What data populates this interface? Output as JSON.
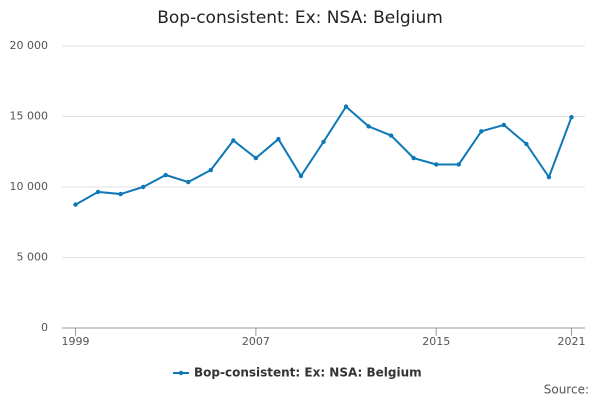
{
  "chart_data": {
    "type": "line",
    "title": "Bop-consistent: Ex: NSA: Belgium",
    "x": [
      1999,
      2000,
      2001,
      2002,
      2003,
      2004,
      2005,
      2006,
      2007,
      2008,
      2009,
      2010,
      2011,
      2012,
      2013,
      2014,
      2015,
      2016,
      2017,
      2018,
      2019,
      2020,
      2021
    ],
    "series": [
      {
        "name": "Bop-consistent: Ex: NSA: Belgium",
        "color": "#0e78b7",
        "values": [
          8750,
          9650,
          9500,
          10000,
          10850,
          10350,
          11200,
          13300,
          12050,
          13400,
          10780,
          13200,
          15700,
          14300,
          13650,
          12050,
          11600,
          11600,
          13950,
          14400,
          13050,
          10700,
          14950
        ]
      }
    ],
    "xlim": [
      1998.4,
      2021.6
    ],
    "xticks": [
      1999,
      2007,
      2015,
      2021
    ],
    "ylim": [
      0,
      20000
    ],
    "yticks": [
      0,
      {
        "value": 5000,
        "label": "5 000"
      },
      {
        "value": 10000,
        "label": "10 000"
      },
      {
        "value": 15000,
        "label": "15 000"
      },
      {
        "value": 20000,
        "label": "20 000"
      }
    ],
    "grid": true,
    "legend": "bottom",
    "source": "Source:"
  }
}
